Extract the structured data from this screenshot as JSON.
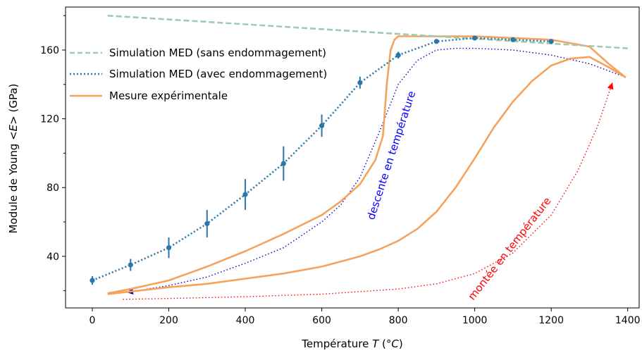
{
  "chart_data": {
    "type": "line",
    "xlabel": "Température T (°C)",
    "ylabel": "Module de Young <E> (GPa)",
    "xlim": [
      -70,
      1430
    ],
    "ylim": [
      10,
      185
    ],
    "xticks": [
      0,
      200,
      400,
      600,
      800,
      1000,
      1200,
      1400
    ],
    "yticks": [
      40,
      80,
      120,
      160
    ],
    "grid": false,
    "legend_position": "top-left",
    "series": [
      {
        "name": "Simulation MED (sans endommagement)",
        "style": "dashed",
        "color": "#9ccbb3",
        "x": [
          40,
          1400
        ],
        "y": [
          180,
          161
        ]
      },
      {
        "name": "Simulation MED (avec endommagement)",
        "style": "dotted",
        "color": "#2b78a8",
        "x": [
          0,
          100,
          200,
          300,
          400,
          500,
          600,
          700,
          800,
          900,
          1000,
          1100,
          1200
        ],
        "y": [
          26,
          35,
          45,
          59,
          76,
          94,
          116,
          141,
          157,
          165,
          167,
          166,
          165
        ],
        "yerr": [
          2.5,
          3.5,
          6,
          8,
          9,
          10,
          6.5,
          3.5,
          2,
          1,
          1,
          1,
          1
        ]
      },
      {
        "name": "Mesure expérimentale",
        "style": "solid",
        "color": "#f5a25d",
        "heating_x": [
          40,
          100,
          200,
          300,
          400,
          500,
          600,
          650,
          700,
          750,
          800,
          850,
          900,
          950,
          1000,
          1050,
          1100,
          1150,
          1200,
          1250,
          1300,
          1350,
          1395
        ],
        "heating_y": [
          18,
          19.5,
          22,
          24,
          27,
          30,
          34,
          37,
          40,
          44,
          49,
          56,
          66,
          80,
          97,
          115,
          130,
          142,
          151,
          155,
          156,
          150,
          144
        ],
        "cooling_x": [
          1395,
          1350,
          1300,
          1200,
          1100,
          1000,
          900,
          800,
          790,
          780,
          770,
          760,
          740,
          700,
          650,
          600,
          500,
          400,
          300,
          200,
          100,
          40
        ],
        "cooling_y": [
          144,
          152,
          162,
          166,
          167,
          168,
          168,
          168,
          166,
          160,
          140,
          110,
          96,
          82,
          72,
          64,
          53,
          43,
          34,
          26,
          21,
          18.5
        ]
      }
    ],
    "annotations": [
      {
        "text": "descente en température",
        "color": "#0000ff"
      },
      {
        "text": "montée en température",
        "color": "#ff0000"
      }
    ],
    "arrow_paths": [
      {
        "name": "cooling-arrow",
        "color": "#0000cc",
        "x": [
          1385,
          1300,
          1200,
          1100,
          1000,
          950,
          900,
          850,
          800,
          750,
          700,
          650,
          600,
          500,
          400,
          300,
          200,
          90
        ],
        "y": [
          145,
          152,
          157,
          160,
          161,
          161,
          160,
          154,
          140,
          112,
          86,
          70,
          60,
          45,
          36,
          28,
          23,
          19
        ]
      },
      {
        "name": "heating-arrow",
        "color": "#ff0000",
        "x": [
          80,
          200,
          400,
          600,
          800,
          900,
          1000,
          1100,
          1200,
          1270,
          1320,
          1360
        ],
        "y": [
          15,
          15.5,
          16.5,
          18,
          21,
          24,
          30,
          42,
          64,
          90,
          115,
          141
        ]
      }
    ]
  }
}
